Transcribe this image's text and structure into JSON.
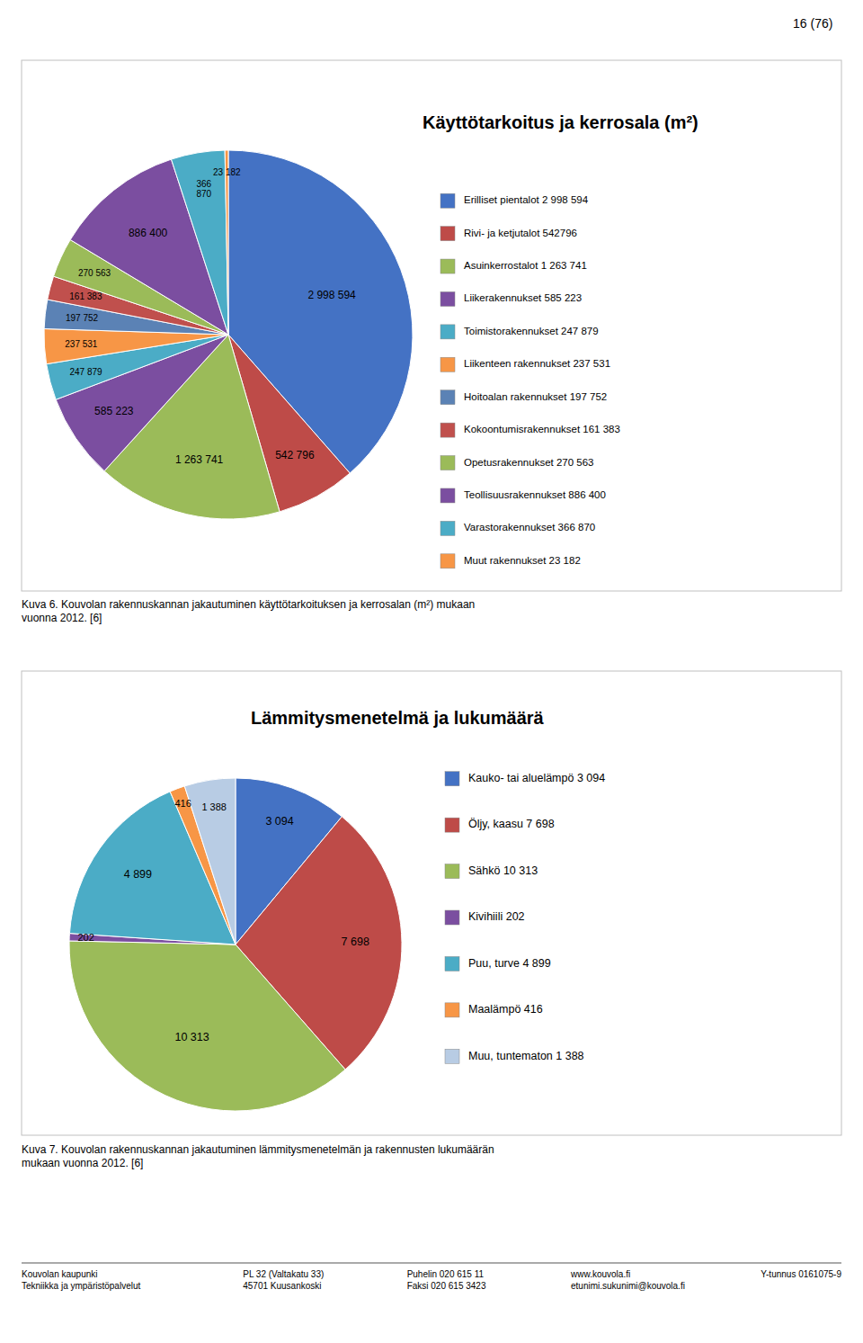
{
  "page_header": "16 (76)",
  "chart_data": [
    {
      "type": "pie",
      "title": "Käyttötarkoitus ja kerrosala (m²)",
      "caption": "Kuva 6. Kouvolan rakennuskannan jakautuminen käyttötarkoituksen ja kerrosalan (m²) mukaan\nvuonna 2012. [6]",
      "categories": [
        "Erilliset pientalot 2 998 594",
        "Rivi- ja ketjutalot 542796",
        "Asuinkerrostalot 1 263 741",
        "Liikerakennukset 585 223",
        "Toimistorakennukset 247 879",
        "Liikenteen rakennukset 237 531",
        "Hoitoalan rakennukset 197 752",
        "Kokoontumisrakennukset 161 383",
        "Opetusrakennukset 270 563",
        "Teollisuusrakennukset 886 400",
        "Varastorakennukset 366 870",
        "Muut rakennukset 23 182"
      ],
      "values": [
        2998594,
        542796,
        1263741,
        585223,
        247879,
        237531,
        197752,
        161383,
        270563,
        886400,
        366870,
        23182
      ],
      "value_labels": [
        "2 998 594",
        "542 796",
        "1 263 741",
        "585 223",
        "247 879",
        "237 531",
        "197 752",
        "161 383",
        "270 563",
        "886 400",
        "366\n870",
        "23 182"
      ],
      "colors": [
        "#4472C4",
        "#BE4B48",
        "#9BBB59",
        "#7B4EA0",
        "#4BACC6",
        "#F79646",
        "#5B82B5",
        "#C0504D",
        "#9BBB59",
        "#7B4EA0",
        "#4BACC6",
        "#F79646"
      ],
      "data_labels": true,
      "legend": "right"
    },
    {
      "type": "pie",
      "title": "Lämmitysmenetelmä ja lukumäärä",
      "caption": "Kuva 7. Kouvolan rakennuskannan jakautuminen lämmitysmenetelmän ja rakennusten lukumäärän\nmukaan vuonna 2012. [6]",
      "categories": [
        "Kauko- tai aluelämpö 3 094",
        "Öljy, kaasu 7 698",
        "Sähkö 10 313",
        "Kivihiili 202",
        "Puu, turve 4 899",
        "Maalämpö 416",
        "Muu, tuntematon 1 388"
      ],
      "values": [
        3094,
        7698,
        10313,
        202,
        4899,
        416,
        1388
      ],
      "value_labels": [
        "3 094",
        "7 698",
        "10 313",
        "202",
        "4 899",
        "416",
        "1 388"
      ],
      "colors": [
        "#4472C4",
        "#BE4B48",
        "#9BBB59",
        "#7B4EA0",
        "#4BACC6",
        "#F79646",
        "#B8CCE4"
      ],
      "data_labels": true,
      "legend": "right"
    }
  ],
  "footer": [
    "Kouvolan kaupunki\nTekniikka ja ympäristöpalvelut",
    "PL 32 (Valtakatu 33)\n45701 Kuusankoski",
    "Puhelin 020 615 11\nFaksi 020 615 3423",
    "www.kouvola.fi\netunimi.sukunimi@kouvola.fi",
    "Y-tunnus 0161075-9"
  ]
}
